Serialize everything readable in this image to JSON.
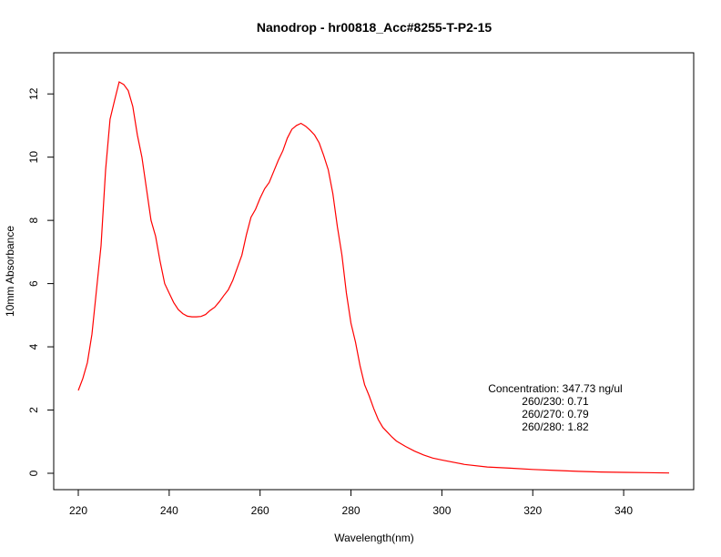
{
  "chart_data": {
    "type": "line",
    "title": "Nanodrop - hr00818_Acc#8255-T-P2-15",
    "xlabel": "Wavelength(nm)",
    "ylabel": "10mm Absorbance",
    "xlim": [
      220,
      350
    ],
    "ylim": [
      0,
      12.4
    ],
    "x_ticks": [
      "220",
      "240",
      "260",
      "280",
      "300",
      "320",
      "340"
    ],
    "y_ticks": [
      "0",
      "2",
      "4",
      "6",
      "8",
      "10",
      "12"
    ],
    "grid": false,
    "series": [
      {
        "color": "#ff0000",
        "x": [
          220,
          221,
          222,
          223,
          224,
          225,
          226,
          227,
          228,
          229,
          230,
          231,
          232,
          233,
          234,
          235,
          236,
          237,
          238,
          239,
          240,
          241,
          242,
          243,
          244,
          245,
          246,
          247,
          248,
          249,
          250,
          251,
          252,
          253,
          254,
          255,
          256,
          257,
          258,
          259,
          260,
          261,
          262,
          263,
          264,
          265,
          266,
          267,
          268,
          269,
          270,
          271,
          272,
          273,
          274,
          275,
          276,
          277,
          278,
          279,
          280,
          281,
          282,
          283,
          284,
          285,
          286,
          287,
          288,
          289,
          290,
          292,
          294,
          296,
          298,
          300,
          305,
          310,
          315,
          320,
          325,
          330,
          335,
          340,
          345,
          350
        ],
        "y": [
          2.62,
          3.0,
          3.5,
          4.4,
          5.8,
          7.2,
          9.6,
          11.2,
          11.8,
          12.38,
          12.3,
          12.1,
          11.6,
          10.7,
          10.0,
          9.0,
          8.0,
          7.5,
          6.7,
          6.0,
          5.7,
          5.4,
          5.18,
          5.05,
          4.97,
          4.95,
          4.95,
          4.96,
          5.02,
          5.15,
          5.25,
          5.42,
          5.62,
          5.8,
          6.1,
          6.5,
          6.9,
          7.55,
          8.1,
          8.35,
          8.7,
          9.0,
          9.2,
          9.55,
          9.9,
          10.2,
          10.6,
          10.88,
          11.0,
          11.07,
          10.98,
          10.85,
          10.7,
          10.45,
          10.05,
          9.6,
          8.85,
          7.8,
          6.9,
          5.7,
          4.75,
          4.15,
          3.4,
          2.8,
          2.45,
          2.05,
          1.7,
          1.45,
          1.3,
          1.15,
          1.02,
          0.85,
          0.7,
          0.58,
          0.48,
          0.42,
          0.28,
          0.2,
          0.16,
          0.12,
          0.09,
          0.06,
          0.04,
          0.03,
          0.02,
          0.01
        ]
      }
    ]
  },
  "annotation": {
    "lines": [
      "Concentration: 347.73 ng/ul",
      "260/230: 0.71",
      "260/270: 0.79",
      "260/280: 1.82"
    ]
  }
}
